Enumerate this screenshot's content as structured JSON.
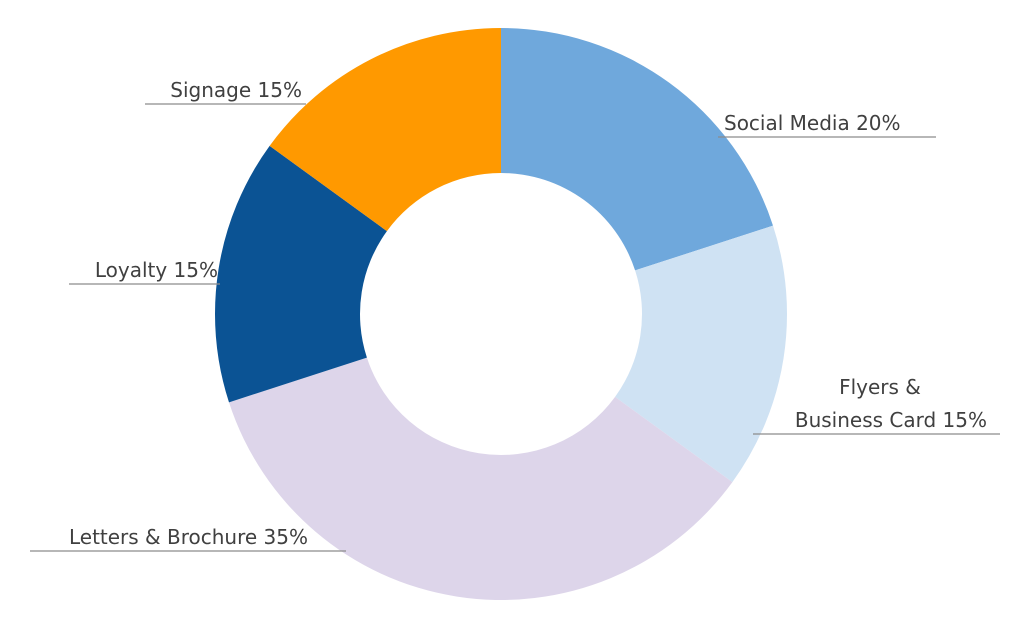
{
  "chart_data": {
    "type": "pie",
    "title": "",
    "donut": true,
    "legend": "none",
    "slices": [
      {
        "name": "Social Media",
        "value": 20,
        "label_lines": [
          "Social Media 20%"
        ],
        "color": "#6fa8dc"
      },
      {
        "name": "Flyers & Business Card",
        "value": 15,
        "label_lines": [
          "Flyers &",
          "Business Card 15%"
        ],
        "color": "#cfe2f3"
      },
      {
        "name": "Letters & Brochure",
        "value": 35,
        "label_lines": [
          "Letters & Brochure 35%"
        ],
        "color": "#ddd5ea"
      },
      {
        "name": "Loyalty",
        "value": 15,
        "label_lines": [
          "Loyalty 15%"
        ],
        "color": "#0b5394"
      },
      {
        "name": "Signage",
        "value": 15,
        "label_lines": [
          "Signage 15%"
        ],
        "color": "#ff9900"
      }
    ]
  }
}
